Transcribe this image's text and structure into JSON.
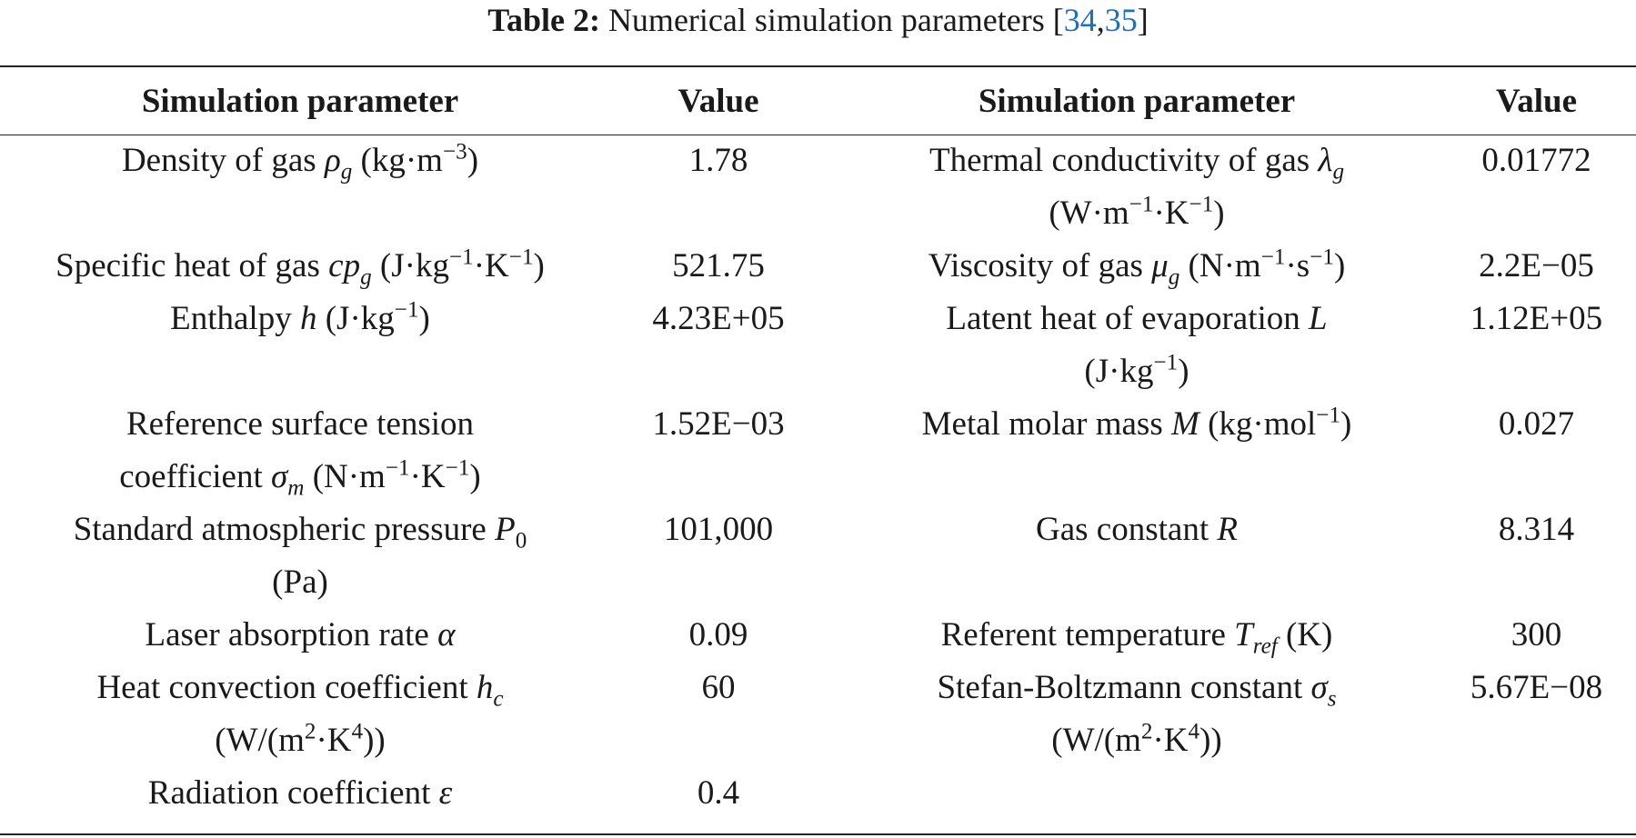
{
  "caption": {
    "label": "Table 2:",
    "text": "Numerical simulation parameters [",
    "ref1": "34",
    "sep": ",",
    "ref2": "35",
    "close": "]"
  },
  "table": {
    "headers": [
      "Simulation parameter",
      "Value",
      "Simulation parameter",
      "Value"
    ],
    "rows": [
      {
        "left_name": "Density of gas ",
        "left_sym": "ρ",
        "left_sub": "g",
        "left_unit_a": " (kg·m",
        "left_unit_sup": "−3",
        "left_unit_b": ")",
        "left_value": "1.78",
        "right_name": "Thermal conductivity of gas ",
        "right_sym": "λ",
        "right_sub": "g",
        "right_unit_a": "(W·m",
        "right_unit_sup1": "−1",
        "right_unit_b": "·K",
        "right_unit_sup2": "−1",
        "right_unit_c": ")",
        "right_value": "0.01772"
      },
      {
        "left_name": "Specific heat of gas ",
        "left_sym": "cp",
        "left_sub": "g",
        "left_unit_a": " (J·kg",
        "left_unit_sup1": "−1",
        "left_unit_b": "·K",
        "left_unit_sup2": "−1",
        "left_unit_c": ")",
        "left_value": "521.75",
        "right_name": "Viscosity of gas ",
        "right_sym": "μ",
        "right_sub": "g",
        "right_unit_a": " (N·m",
        "right_unit_sup1": "−1",
        "right_unit_b": "·s",
        "right_unit_sup2": "−1",
        "right_unit_c": ")",
        "right_value": "2.2E−05"
      },
      {
        "left_name": "Enthalpy ",
        "left_sym": "h",
        "left_unit_a": " (J·kg",
        "left_unit_sup": "−1",
        "left_unit_b": ")",
        "left_value": "4.23E+05",
        "right_name": "Latent heat of evaporation ",
        "right_sym": "L",
        "right_unit_a": "(J·kg",
        "right_unit_sup": "−1",
        "right_unit_b": ")",
        "right_value": "1.12E+05"
      },
      {
        "left_name": "Reference surface tension",
        "left_name2": "coefficient ",
        "left_sym": "σ",
        "left_sub": "m",
        "left_unit_a": " (N·m",
        "left_unit_sup1": "−1",
        "left_unit_b": "·K",
        "left_unit_sup2": "−1",
        "left_unit_c": ")",
        "left_value": "1.52E−03",
        "right_name": "Metal molar mass ",
        "right_sym": "M",
        "right_unit_a": " (kg·mol",
        "right_unit_sup": "−1",
        "right_unit_b": ")",
        "right_value": "0.027"
      },
      {
        "left_name": "Standard atmospheric pressure ",
        "left_sym": "P",
        "left_sub": "0",
        "left_unit": "(Pa)",
        "left_value": "101,000",
        "right_name": "Gas constant ",
        "right_sym": "R",
        "right_value": "8.314"
      },
      {
        "left_name": "Laser absorption rate ",
        "left_sym": "α",
        "left_value": "0.09",
        "right_name": "Referent temperature ",
        "right_sym": "T",
        "right_sub": "ref",
        "right_unit": " (K)",
        "right_value": "300"
      },
      {
        "left_name": "Heat convection coefficient ",
        "left_sym": "h",
        "left_sub": "c",
        "left_unit_a": "(W/(m",
        "left_unit_sup1": "2",
        "left_unit_b": "·K",
        "left_unit_sup2": "4",
        "left_unit_c": "))",
        "left_value": "60",
        "right_name": "Stefan-Boltzmann constant ",
        "right_sym": "σ",
        "right_sub": "s",
        "right_unit_a": "(W/(m",
        "right_unit_sup1": "2",
        "right_unit_b": "·K",
        "right_unit_sup2": "4",
        "right_unit_c": "))",
        "right_value": "5.67E−08"
      },
      {
        "left_name": "Radiation coefficient ",
        "left_sym": "ε",
        "left_value": "0.4"
      }
    ]
  }
}
